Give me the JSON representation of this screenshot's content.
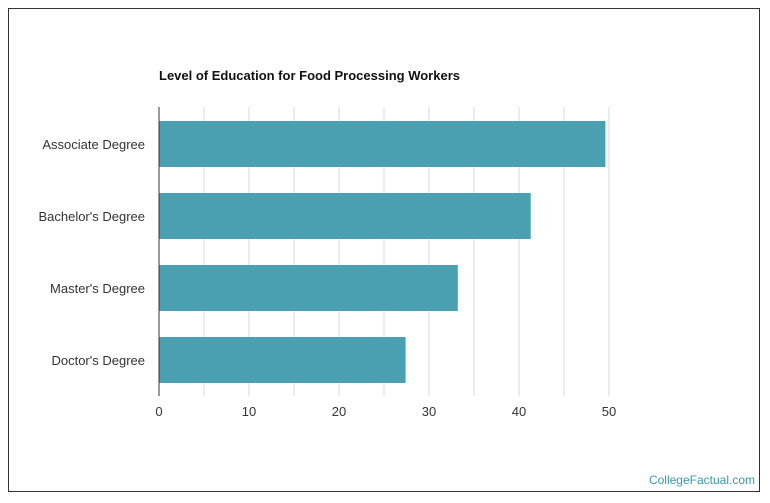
{
  "chart_data": {
    "type": "bar",
    "orientation": "horizontal",
    "title": "Level of Education for Food Processing Workers",
    "categories": [
      "Associate Degree",
      "Bachelor's Degree",
      "Master's Degree",
      "Doctor's Degree"
    ],
    "values": [
      49.6,
      41.3,
      33.2,
      27.4
    ],
    "xlabel": "",
    "ylabel": "",
    "xlim": [
      0,
      50
    ],
    "xticks": [
      "0",
      "10",
      "20",
      "30",
      "40",
      "50"
    ],
    "grid": true,
    "bar_color": "#4a9fb0",
    "gridline_color": "#d9d9d9"
  },
  "footer": {
    "watermark": "CollegeFactual.com"
  },
  "colors": {
    "accent": "#3a98a8",
    "frame": "#333333"
  }
}
